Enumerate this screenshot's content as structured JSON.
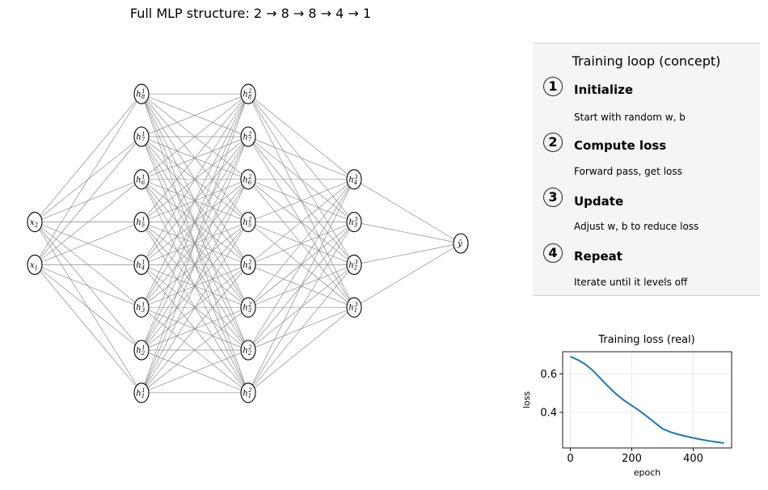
{
  "title": "Full MLP structure: 2 → 8 → 8 → 4 → 1",
  "network": {
    "layers": [
      {
        "count": 2,
        "label": "x",
        "sup": ""
      },
      {
        "count": 8,
        "label": "h",
        "sup": "1"
      },
      {
        "count": 8,
        "label": "h",
        "sup": "2"
      },
      {
        "count": 4,
        "label": "h",
        "sup": "3"
      },
      {
        "count": 1,
        "label": "ŷ",
        "sup": ""
      }
    ],
    "output_label": "ŷ",
    "edge_color": "#8c8c8c"
  },
  "panel": {
    "title": "Training loop (concept)",
    "steps": [
      {
        "num": "1",
        "title": "Initialize",
        "desc": "Start with random w, b"
      },
      {
        "num": "2",
        "title": "Compute loss",
        "desc": "Forward pass, get loss"
      },
      {
        "num": "3",
        "title": "Update",
        "desc": "Adjust w, b to reduce loss"
      },
      {
        "num": "4",
        "title": "Repeat",
        "desc": "Iterate until it levels off"
      }
    ]
  },
  "chart_data": {
    "type": "line",
    "title": "Training loss (real)",
    "xlabel": "epoch",
    "ylabel": "loss",
    "xlim": [
      -25,
      525
    ],
    "ylim": [
      0.215,
      0.715
    ],
    "xticks": [
      0,
      200,
      400
    ],
    "yticks": [
      0.4,
      0.6
    ],
    "grid": true,
    "color": "#1f77b4",
    "x": [
      0,
      25,
      50,
      75,
      100,
      125,
      150,
      175,
      200,
      225,
      250,
      275,
      300,
      325,
      350,
      375,
      400,
      425,
      450,
      475,
      500
    ],
    "y": [
      0.69,
      0.672,
      0.648,
      0.615,
      0.573,
      0.532,
      0.494,
      0.462,
      0.435,
      0.408,
      0.378,
      0.346,
      0.315,
      0.298,
      0.286,
      0.276,
      0.267,
      0.259,
      0.252,
      0.246,
      0.24
    ]
  }
}
